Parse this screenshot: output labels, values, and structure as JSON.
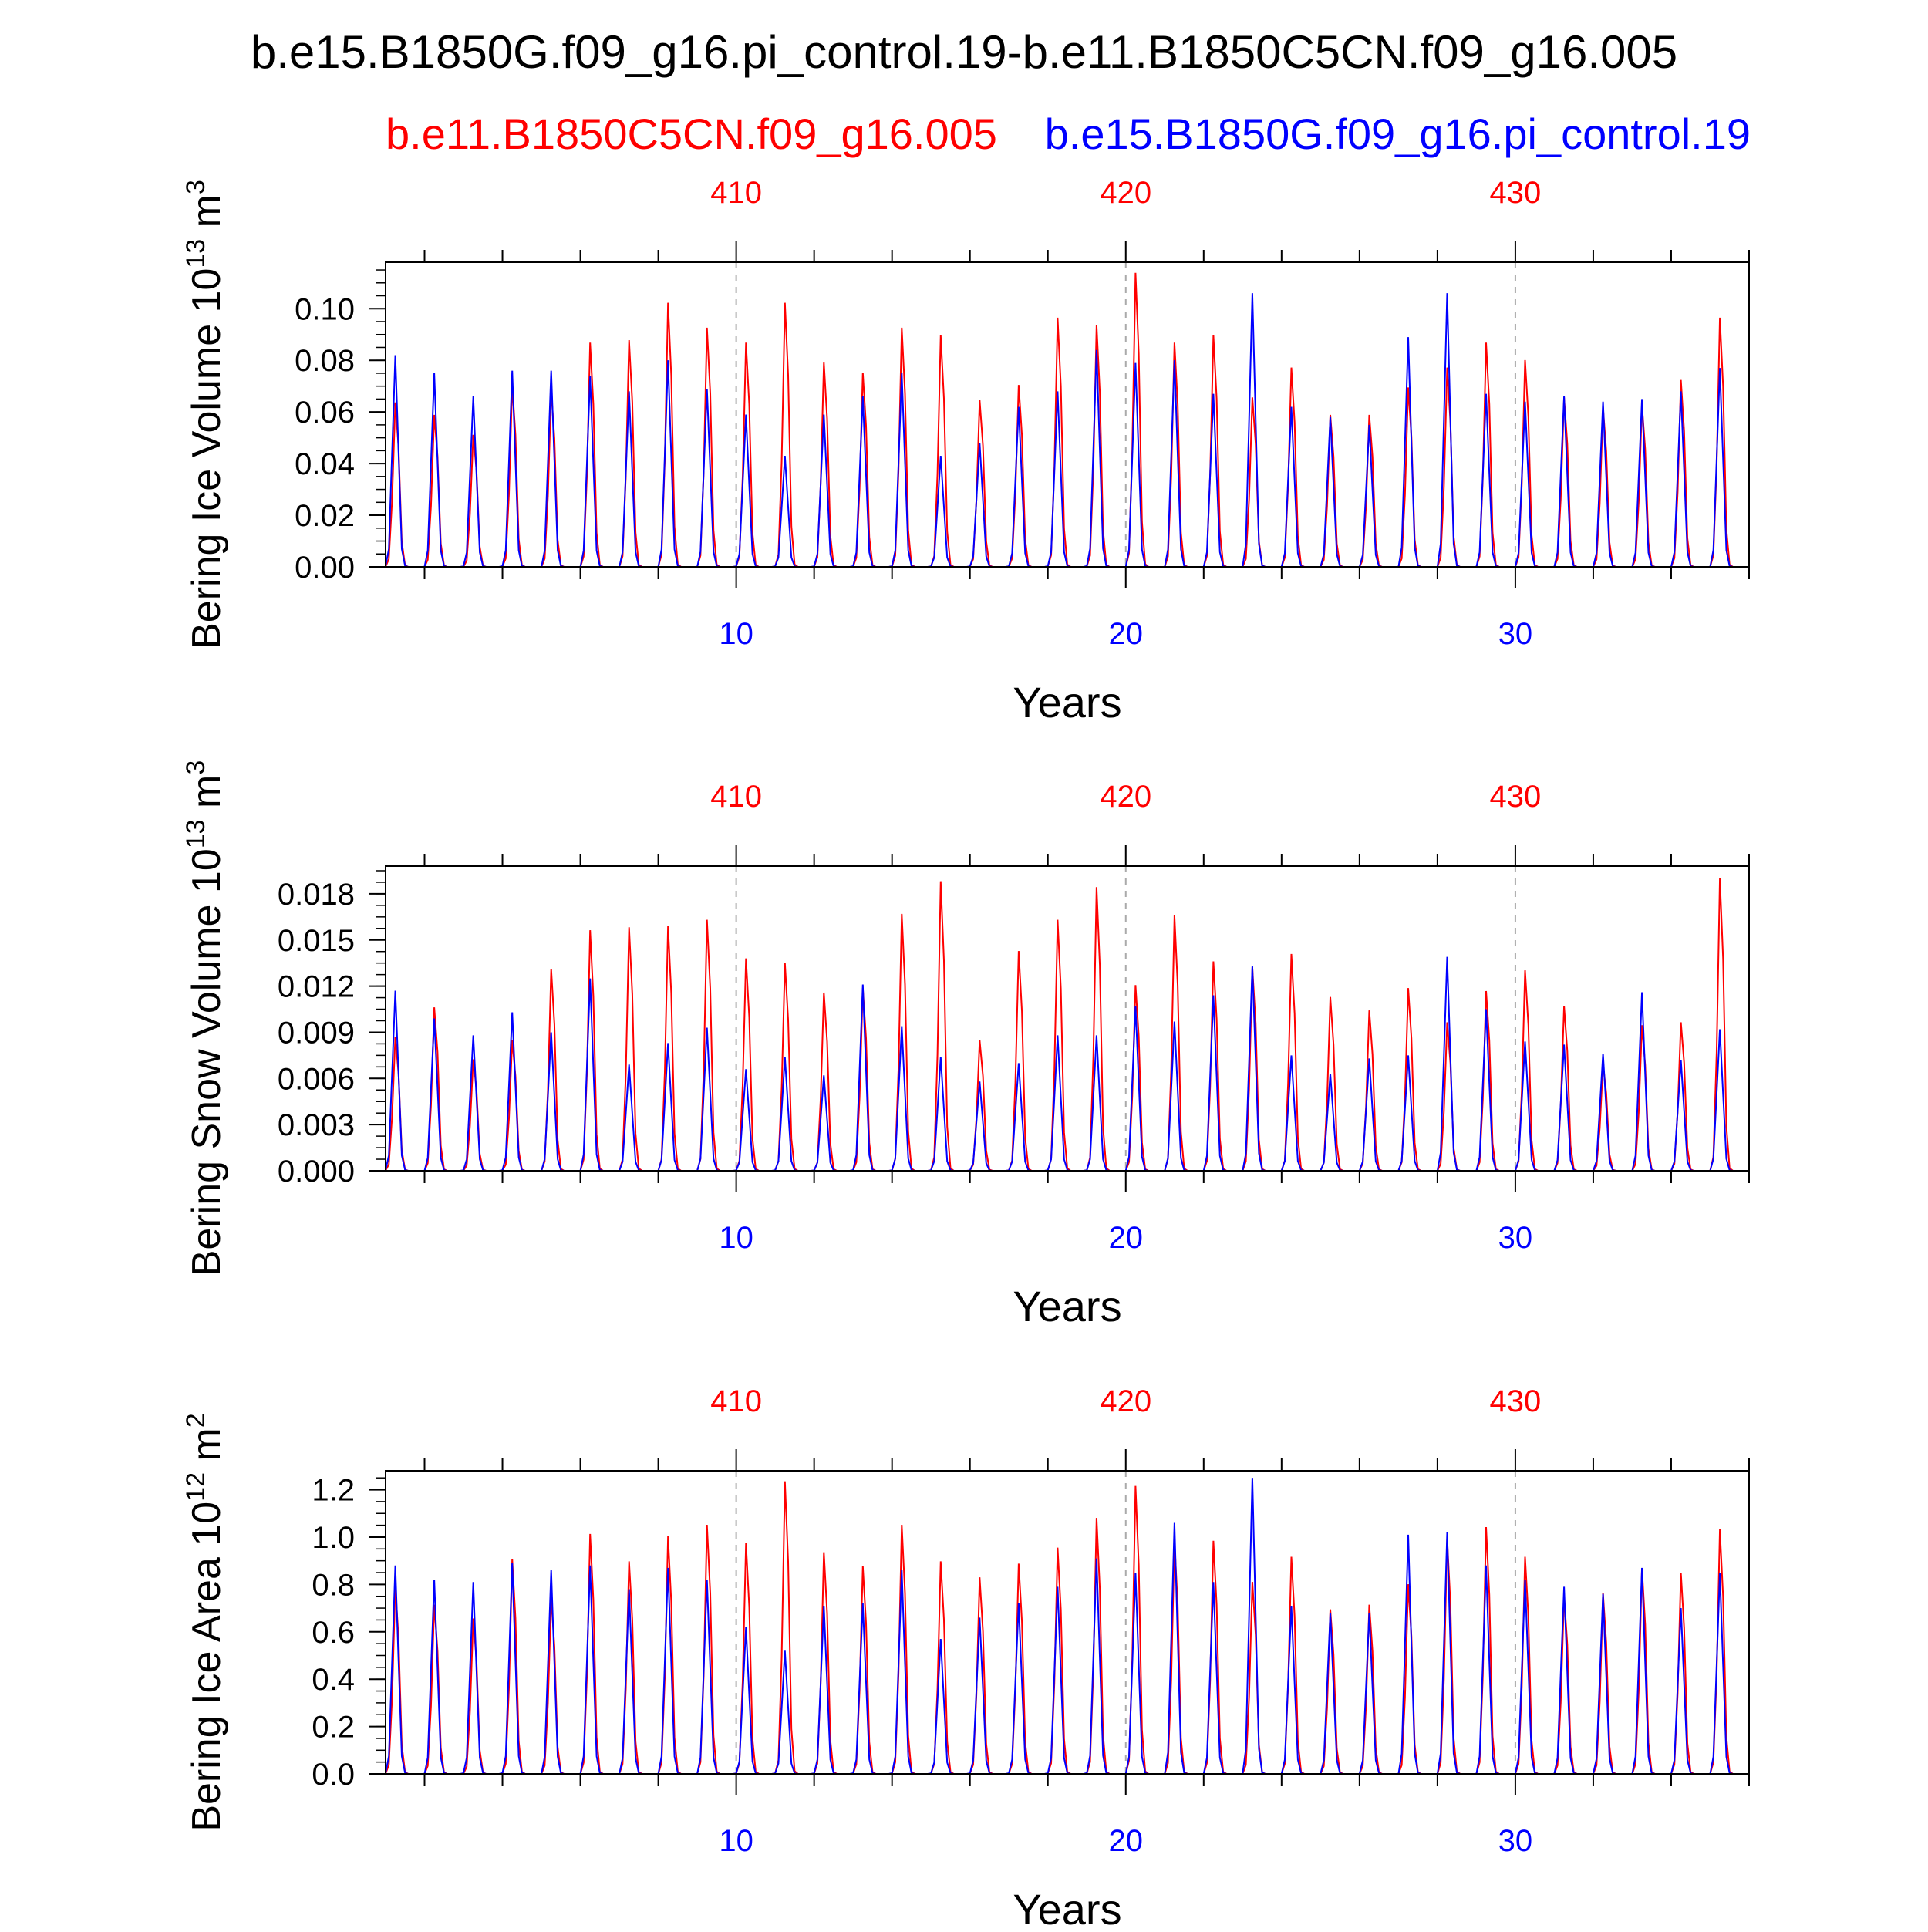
{
  "title": "b.e15.B1850G.f09_g16.pi_control.19-b.e11.B1850C5CN.f09_g16.005",
  "legend": {
    "red_label": "b.e11.B1850C5CN.f09_g16.005",
    "blue_label": "b.e15.B1850G.f09_g16.pi_control.19"
  },
  "colors": {
    "red": "#ff0000",
    "blue": "#0000ff",
    "axis": "#000000",
    "grid": "#aaaaaa"
  },
  "chart_data": [
    {
      "type": "line",
      "ylabel": "Bering Ice Volume 10",
      "ylabel_sup": "13",
      "ylabel_unit": "m",
      "ylabel_unit_sup": "3",
      "xlabel": "Years",
      "xlim": [
        1,
        36
      ],
      "ylim": [
        0,
        0.118
      ],
      "yticks": [
        0.0,
        0.02,
        0.04,
        0.06,
        0.08,
        0.1
      ],
      "ytick_labels": [
        "0.00",
        "0.02",
        "0.04",
        "0.06",
        "0.08",
        "0.10"
      ],
      "x_bottom_ticks": [
        10,
        20,
        30
      ],
      "x_bottom_labels": [
        "10",
        "20",
        "30"
      ],
      "x_top_labels": [
        "410",
        "420",
        "430"
      ],
      "grid_x": [
        10,
        20,
        30
      ],
      "series": [
        {
          "name": "b.e11.B1850C5CN.f09_g16.005",
          "color": "red",
          "peaks": [
            0.066,
            0.061,
            0.053,
            0.073,
            0.071,
            0.09,
            0.091,
            0.106,
            0.096,
            0.09,
            0.106,
            0.082,
            0.078,
            0.096,
            0.093,
            0.067,
            0.073,
            0.1,
            0.097,
            0.118,
            0.09,
            0.093,
            0.068,
            0.08,
            0.061,
            0.061,
            0.072,
            0.08,
            0.09,
            0.083,
            0.068,
            0.064,
            0.065,
            0.075,
            0.1
          ]
        },
        {
          "name": "b.e15.B1850G.f09_g16.pi_control.19",
          "color": "blue",
          "peaks": [
            0.082,
            0.075,
            0.066,
            0.076,
            0.076,
            0.074,
            0.068,
            0.08,
            0.069,
            0.059,
            0.043,
            0.059,
            0.066,
            0.075,
            0.043,
            0.048,
            0.062,
            0.068,
            0.084,
            0.079,
            0.08,
            0.067,
            0.106,
            0.062,
            0.058,
            0.055,
            0.089,
            0.106,
            0.067,
            0.064,
            0.066,
            0.064,
            0.065,
            0.068,
            0.077
          ]
        }
      ]
    },
    {
      "type": "line",
      "ylabel": "Bering Snow Volume 10",
      "ylabel_sup": "13",
      "ylabel_unit": "m",
      "ylabel_unit_sup": "3",
      "xlabel": "Years",
      "xlim": [
        1,
        36
      ],
      "ylim": [
        0,
        0.0198
      ],
      "yticks": [
        0.0,
        0.003,
        0.006,
        0.009,
        0.012,
        0.015,
        0.018
      ],
      "ytick_labels": [
        "0.000",
        "0.003",
        "0.006",
        "0.009",
        "0.012",
        "0.015",
        "0.018"
      ],
      "x_bottom_ticks": [
        10,
        20,
        30
      ],
      "x_bottom_labels": [
        "10",
        "20",
        "30"
      ],
      "x_top_labels": [
        "410",
        "420",
        "430"
      ],
      "grid_x": [
        10,
        20,
        30
      ],
      "series": [
        {
          "name": "b.e11.B1850C5CN.f09_g16.005",
          "color": "red",
          "peaks": [
            0.009,
            0.011,
            0.0075,
            0.0088,
            0.0136,
            0.0162,
            0.0164,
            0.0165,
            0.0169,
            0.0143,
            0.014,
            0.012,
            0.0123,
            0.0173,
            0.0195,
            0.0088,
            0.0148,
            0.0169,
            0.0191,
            0.0125,
            0.0172,
            0.0141,
            0.0137,
            0.0146,
            0.0117,
            0.0108,
            0.0123,
            0.01,
            0.0121,
            0.0135,
            0.0111,
            0.0072,
            0.0098,
            0.01,
            0.0197
          ]
        },
        {
          "name": "b.e15.B1850G.f09_g16.pi_control.19",
          "color": "blue",
          "peaks": [
            0.0117,
            0.0099,
            0.0088,
            0.0103,
            0.009,
            0.0125,
            0.0069,
            0.0083,
            0.0093,
            0.0066,
            0.0074,
            0.0062,
            0.0121,
            0.0094,
            0.0074,
            0.0058,
            0.007,
            0.0088,
            0.0088,
            0.0107,
            0.0097,
            0.0114,
            0.0133,
            0.0075,
            0.0063,
            0.0073,
            0.0075,
            0.0139,
            0.0105,
            0.0084,
            0.0082,
            0.0076,
            0.0116,
            0.0072,
            0.0092
          ]
        }
      ]
    },
    {
      "type": "line",
      "ylabel": "Bering Ice Area 10",
      "ylabel_sup": "12",
      "ylabel_unit": "m",
      "ylabel_unit_sup": "2",
      "xlabel": "Years",
      "xlim": [
        1,
        36
      ],
      "ylim": [
        0,
        1.28
      ],
      "yticks": [
        0.0,
        0.2,
        0.4,
        0.6,
        0.8,
        1.0,
        1.2
      ],
      "ytick_labels": [
        "0.0",
        "0.2",
        "0.4",
        "0.6",
        "0.8",
        "1.0",
        "1.2"
      ],
      "x_bottom_ticks": [
        10,
        20,
        30
      ],
      "x_bottom_labels": [
        "10",
        "20",
        "30"
      ],
      "x_top_labels": [
        "410",
        "420",
        "430"
      ],
      "grid_x": [
        10,
        20,
        30
      ],
      "series": [
        {
          "name": "b.e11.B1850C5CN.f09_g16.005",
          "color": "red",
          "peaks": [
            0.82,
            0.74,
            0.68,
            0.94,
            0.77,
            1.05,
            0.93,
            1.04,
            1.09,
            1.01,
            1.28,
            0.97,
            0.91,
            1.09,
            0.93,
            0.86,
            0.92,
            0.99,
            1.12,
            1.26,
            1.02,
            1.02,
            0.84,
            0.95,
            0.72,
            0.74,
            0.83,
            1.03,
            1.08,
            0.95,
            0.78,
            0.79,
            0.9,
            0.88,
            1.07
          ]
        },
        {
          "name": "b.e15.B1850G.f09_g16.pi_control.19",
          "color": "blue",
          "peaks": [
            0.88,
            0.82,
            0.81,
            0.89,
            0.86,
            0.88,
            0.78,
            0.87,
            0.82,
            0.62,
            0.52,
            0.71,
            0.72,
            0.86,
            0.57,
            0.66,
            0.72,
            0.79,
            0.91,
            0.85,
            1.06,
            0.81,
            1.25,
            0.71,
            0.68,
            0.68,
            1.01,
            1.02,
            0.88,
            0.82,
            0.79,
            0.76,
            0.87,
            0.7,
            0.85
          ]
        }
      ]
    }
  ]
}
